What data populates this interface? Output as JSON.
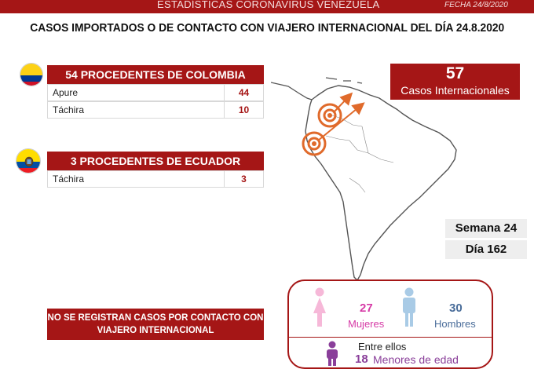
{
  "header": {
    "title": "ESTADÍSTICAS CORONAVIRUS VENEZUELA",
    "date": "FECHA 24/8/2020"
  },
  "main_title": "CASOS IMPORTADOS O DE CONTACTO CON VIAJERO INTERNACIONAL DEL DÍA 24.8.2020",
  "colombia": {
    "heading": "54 PROCEDENTES DE COLOMBIA",
    "rows": [
      {
        "name": "Apure",
        "value": "44"
      },
      {
        "name": "Táchira",
        "value": "10"
      }
    ]
  },
  "ecuador": {
    "heading": "3 PROCEDENTES DE ECUADOR",
    "rows": [
      {
        "name": "Táchira",
        "value": "3"
      }
    ]
  },
  "international": {
    "number": "57",
    "label": "Casos Internacionales"
  },
  "period": {
    "week": "Semana 24",
    "day": "Día 162"
  },
  "contact_note": "NO SE REGISTRAN CASOS POR CONTACTO CON VIAJERO INTERNACIONAL",
  "gender": {
    "women_count": "27",
    "women_label": "Mujeres",
    "men_count": "30",
    "men_label": "Hombres",
    "among_them": "Entre ellos",
    "minors_count": "18",
    "minors_label": "Menores de edad"
  },
  "colors": {
    "brand_red": "#a51616",
    "women": "#d63aa6",
    "men": "#4a6d9a",
    "minors": "#8a3f9a"
  },
  "icons": [
    "colombia-flag-icon",
    "ecuador-flag-icon",
    "south-america-map",
    "woman-icon",
    "man-icon",
    "child-icon",
    "origin-target-icon",
    "direction-arrow-icon"
  ]
}
